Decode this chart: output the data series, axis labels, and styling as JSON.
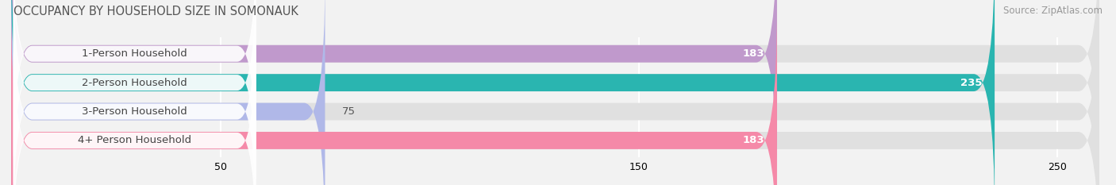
{
  "title": "OCCUPANCY BY HOUSEHOLD SIZE IN SOMONAUK",
  "source": "Source: ZipAtlas.com",
  "categories": [
    "1-Person Household",
    "2-Person Household",
    "3-Person Household",
    "4+ Person Household"
  ],
  "values": [
    183,
    235,
    75,
    183
  ],
  "bar_colors": [
    "#c099cc",
    "#2ab5b0",
    "#b0b8e8",
    "#f589a8"
  ],
  "background_color": "#f2f2f2",
  "bar_bg_color": "#e0e0e0",
  "data_max": 250,
  "xlim_data": 260,
  "xticks": [
    50,
    150,
    250
  ],
  "bar_height": 0.6,
  "title_fontsize": 10.5,
  "source_fontsize": 8.5,
  "label_fontsize": 9.5,
  "value_fontsize": 9.5
}
